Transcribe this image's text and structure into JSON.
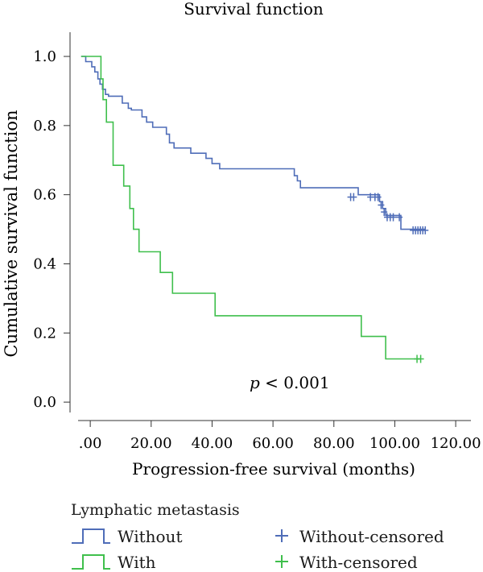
{
  "chart_data": {
    "type": "line",
    "title": "Survival function",
    "xlabel": "Progression-free survival (months)",
    "ylabel": "Cumulative survival function",
    "xlim": [
      -4,
      125
    ],
    "ylim": [
      -0.03,
      1.07
    ],
    "x_ticks": [
      0,
      20,
      40,
      60,
      80,
      100,
      120
    ],
    "x_tick_labels": [
      ".00",
      "20.00",
      "40.00",
      "60.00",
      "80.00",
      "100.00",
      "120.00"
    ],
    "y_ticks": [
      0,
      0.2,
      0.4,
      0.6,
      0.8,
      1.0
    ],
    "y_tick_labels": [
      "0.0",
      "0.2",
      "0.4",
      "0.6",
      "0.8",
      "1.0"
    ],
    "grid": false,
    "annotation": {
      "italic": "p",
      "text": " < 0.001",
      "x": 63,
      "y": 0.05
    },
    "legend": {
      "title": "Lymphatic metastasis",
      "entries": [
        {
          "label": "Without",
          "kind": "step",
          "series": 0
        },
        {
          "label": "With",
          "kind": "step",
          "series": 1
        },
        {
          "label": "Without-censored",
          "kind": "censor",
          "series": 0
        },
        {
          "label": "With-censored",
          "kind": "censor",
          "series": 1
        }
      ]
    },
    "series": [
      {
        "color": "#4f6db8",
        "steps": [
          [
            -3,
            1.0
          ],
          [
            -1.5,
            0.985
          ],
          [
            0.5,
            0.97
          ],
          [
            1.5,
            0.955
          ],
          [
            2.5,
            0.935
          ],
          [
            3.2,
            0.92
          ],
          [
            4,
            0.905
          ],
          [
            5,
            0.89
          ],
          [
            6,
            0.885
          ],
          [
            10.5,
            0.865
          ],
          [
            12.5,
            0.85
          ],
          [
            13.5,
            0.845
          ],
          [
            17,
            0.825
          ],
          [
            18.5,
            0.81
          ],
          [
            20.5,
            0.795
          ],
          [
            25,
            0.775
          ],
          [
            26,
            0.75
          ],
          [
            27.5,
            0.735
          ],
          [
            33,
            0.72
          ],
          [
            38,
            0.705
          ],
          [
            40,
            0.69
          ],
          [
            42.5,
            0.675
          ],
          [
            67,
            0.655
          ],
          [
            68,
            0.64
          ],
          [
            69,
            0.62
          ],
          [
            88,
            0.6
          ],
          [
            95,
            0.58
          ],
          [
            96,
            0.56
          ],
          [
            97,
            0.54
          ],
          [
            102,
            0.5
          ]
        ],
        "end_x": 110,
        "censored": [
          [
            85.5,
            0.593
          ],
          [
            86.5,
            0.593
          ],
          [
            92,
            0.593
          ],
          [
            93.5,
            0.593
          ],
          [
            94.5,
            0.593
          ],
          [
            95.5,
            0.57
          ],
          [
            96.5,
            0.55
          ],
          [
            97.5,
            0.535
          ],
          [
            98.5,
            0.535
          ],
          [
            99.5,
            0.535
          ],
          [
            101.5,
            0.535
          ],
          [
            106,
            0.497
          ],
          [
            106.8,
            0.497
          ],
          [
            107.6,
            0.497
          ],
          [
            108.4,
            0.497
          ],
          [
            109.2,
            0.497
          ],
          [
            110,
            0.497
          ]
        ]
      },
      {
        "color": "#3fbf4c",
        "steps": [
          [
            -3,
            1.0
          ],
          [
            3.5,
            0.935
          ],
          [
            4.2,
            0.875
          ],
          [
            5.3,
            0.81
          ],
          [
            7.5,
            0.685
          ],
          [
            11,
            0.625
          ],
          [
            13,
            0.56
          ],
          [
            14.2,
            0.5
          ],
          [
            16,
            0.435
          ],
          [
            23,
            0.375
          ],
          [
            27,
            0.315
          ],
          [
            41,
            0.25
          ],
          [
            89,
            0.19
          ],
          [
            97,
            0.125
          ]
        ],
        "end_x": 108,
        "censored": [
          [
            107.3,
            0.125
          ],
          [
            108.5,
            0.125
          ]
        ]
      }
    ]
  }
}
